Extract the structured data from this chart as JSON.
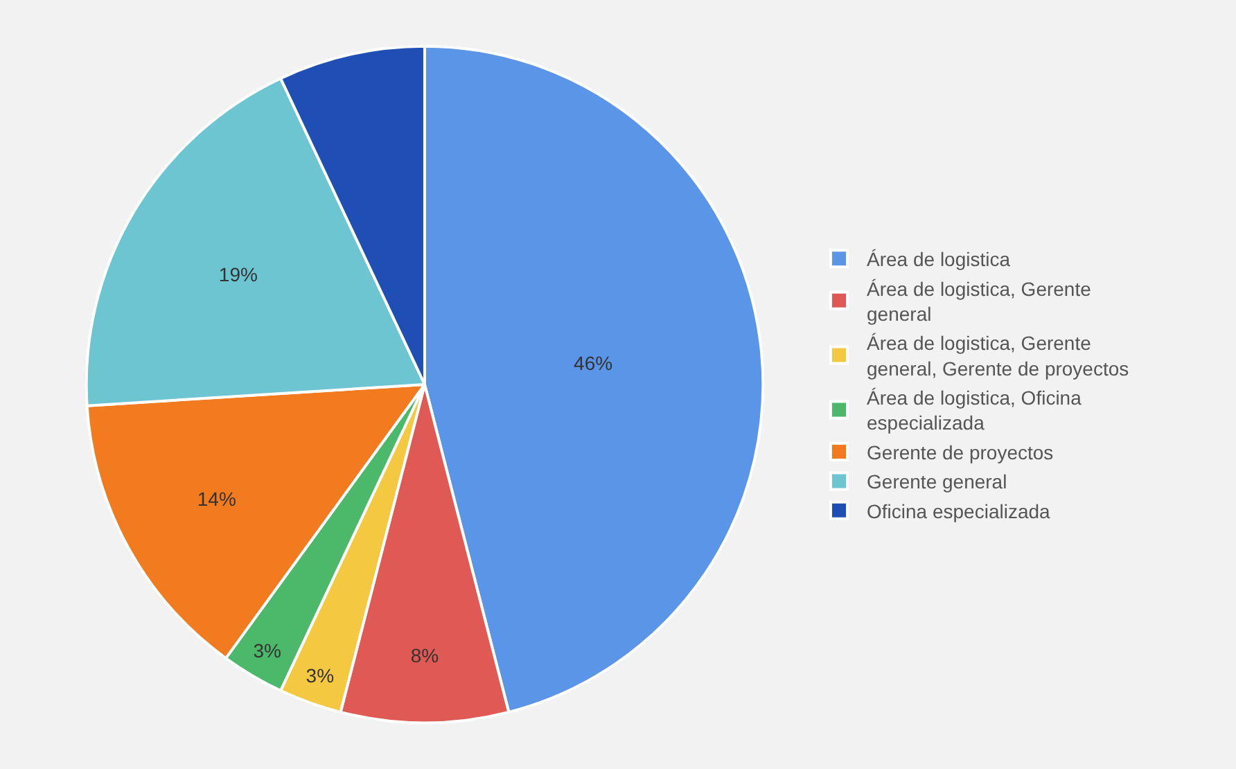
{
  "chart_data": {
    "type": "pie",
    "categories": [
      "Área de logistica",
      "Área de logistica, Gerente general",
      "Área de logistica, Gerente general, Gerente de proyectos",
      "Área de logistica, Oficina especializada",
      "Gerente de proyectos",
      "Gerente general",
      "Oficina especializada"
    ],
    "values": [
      46,
      8,
      3,
      3,
      14,
      19,
      7
    ],
    "colors": [
      "#5b95e8",
      "#e05a55",
      "#f5c842",
      "#4cb86a",
      "#f27a1f",
      "#6cc5d0",
      "#1f4fb5"
    ],
    "value_labels": [
      "46%",
      "8%",
      "3%",
      "3%",
      "14%",
      "19%",
      null
    ],
    "legend": "right"
  }
}
